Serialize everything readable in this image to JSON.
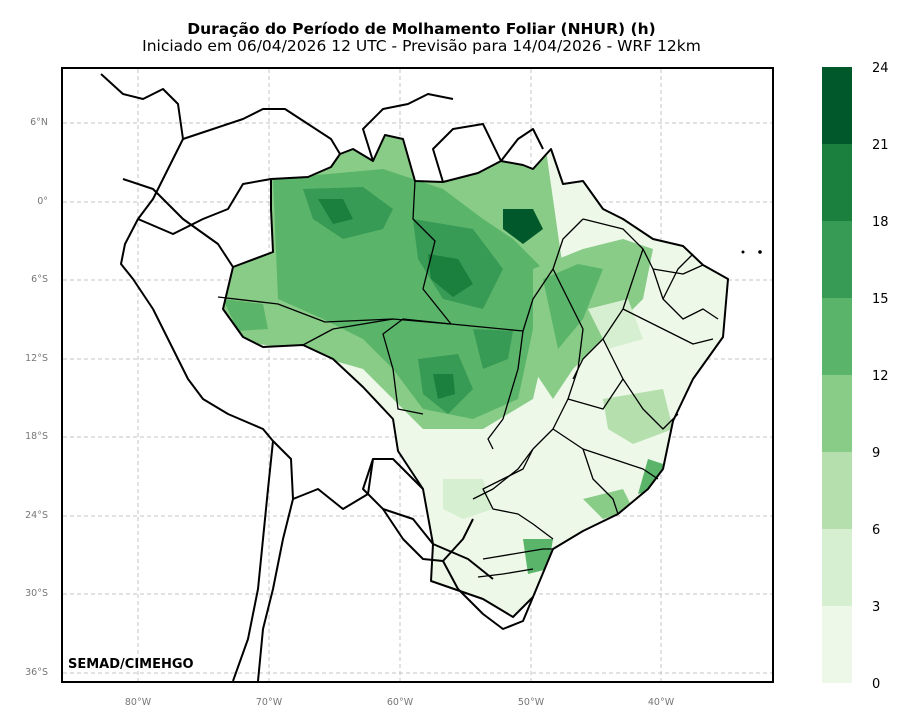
{
  "title": "Duração do Período de Molhamento Foliar (NHUR) (h)",
  "subtitle": "Iniciado em 06/04/2026 12 UTC - Previsão para 14/04/2026 - WRF 12km",
  "credit": "SEMAD/CIMEHGO",
  "lat_labels": [
    "6°N",
    "0°",
    "6°S",
    "12°S",
    "18°S",
    "24°S",
    "30°S",
    "36°S"
  ],
  "lon_labels": [
    "80°W",
    "70°W",
    "60°W",
    "50°W",
    "40°W"
  ],
  "colorbar": {
    "ticks": [
      "0",
      "3",
      "6",
      "9",
      "12",
      "15",
      "18",
      "21",
      "24"
    ],
    "colors": [
      "#edf8e9",
      "#d7efd1",
      "#b5dfac",
      "#88cc87",
      "#5ab56a",
      "#379a55",
      "#1b7f3d",
      "#00582b"
    ]
  }
}
